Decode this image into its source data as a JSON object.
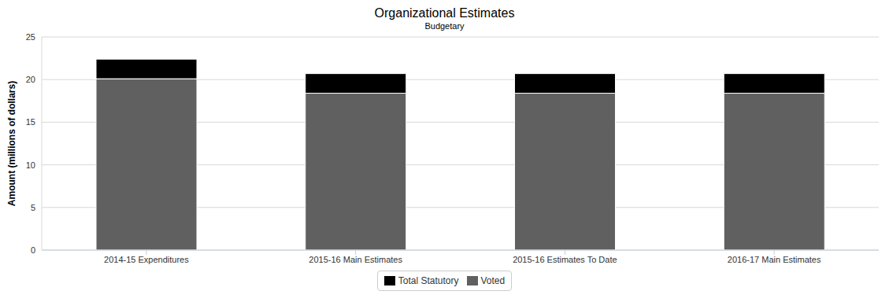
{
  "chart_data": {
    "type": "bar",
    "title": "Organizational Estimates",
    "subtitle": "Budgetary",
    "y_label": "Amount (millions of dollars)",
    "categories": [
      "2014-15 Expenditures",
      "2015-16 Main Estimates",
      "2015-16 Estimates To Date",
      "2016-17 Main Estimates"
    ],
    "series": [
      {
        "name": "Total Statutory",
        "color": "#000000",
        "values": [
          2.3,
          2.3,
          2.3,
          2.3
        ]
      },
      {
        "name": "Voted",
        "color": "#606060",
        "values": [
          20.1,
          18.4,
          18.4,
          18.4
        ]
      }
    ],
    "stacked": true,
    "ylim": [
      0,
      25
    ],
    "yticks": [
      0,
      5,
      10,
      15,
      20,
      25
    ],
    "grid": true,
    "legend": "bottom"
  }
}
